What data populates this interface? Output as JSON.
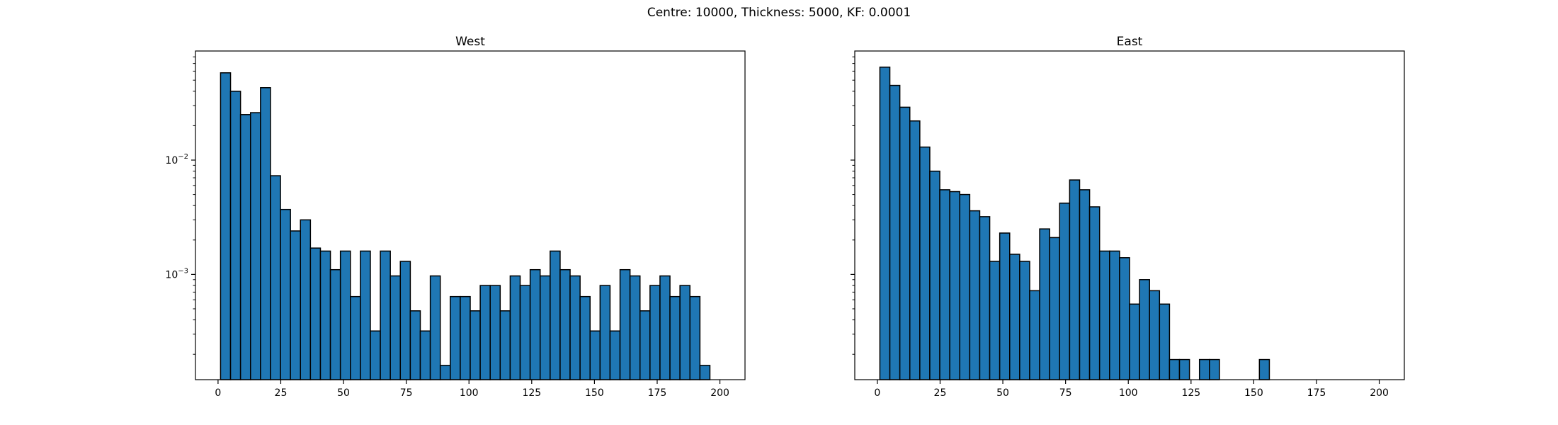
{
  "suptitle": "Centre: 10000, Thickness: 5000, KF: 0.0001",
  "chart_data": [
    {
      "type": "bar",
      "title": "West",
      "xlabel": "",
      "ylabel": "",
      "yscale": "log",
      "xlim": [
        -9,
        210
      ],
      "ylim": [
        0.00012,
        0.09
      ],
      "xticks": [
        0,
        25,
        50,
        75,
        100,
        125,
        150,
        175,
        200
      ],
      "yticks": [
        {
          "value": 0.01,
          "base": "10",
          "exp": "−2"
        },
        {
          "value": 0.001,
          "base": "10",
          "exp": "−3"
        }
      ],
      "bin_start": 1,
      "bin_width": 3.98,
      "values": [
        0.058,
        0.04,
        0.025,
        0.026,
        0.043,
        0.0073,
        0.0037,
        0.0024,
        0.003,
        0.0017,
        0.0016,
        0.0011,
        0.0016,
        0.00064,
        0.0016,
        0.00032,
        0.0016,
        0.00097,
        0.0013,
        0.00048,
        0.00032,
        0.00097,
        0.00016,
        0.00064,
        0.00064,
        0.00048,
        0.0008,
        0.0008,
        0.00048,
        0.00097,
        0.0008,
        0.0011,
        0.00097,
        0.0016,
        0.0011,
        0.00097,
        0.00064,
        0.00032,
        0.0008,
        0.00032,
        0.0011,
        0.00097,
        0.00048,
        0.0008,
        0.00097,
        0.00064,
        0.0008,
        0.00064,
        0.00016,
        0
      ]
    },
    {
      "type": "bar",
      "title": "East",
      "xlabel": "",
      "ylabel": "",
      "yscale": "log",
      "xlim": [
        -9,
        210
      ],
      "ylim": [
        0.00012,
        0.09
      ],
      "xticks": [
        0,
        25,
        50,
        75,
        100,
        125,
        150,
        175,
        200
      ],
      "yticks": [],
      "bin_start": 1,
      "bin_width": 3.98,
      "values": [
        0.065,
        0.045,
        0.029,
        0.022,
        0.013,
        0.008,
        0.0055,
        0.0053,
        0.005,
        0.0036,
        0.0032,
        0.0013,
        0.0023,
        0.0015,
        0.0013,
        0.00072,
        0.0025,
        0.0021,
        0.0042,
        0.0067,
        0.0055,
        0.0039,
        0.0016,
        0.0016,
        0.0014,
        0.00055,
        0.0009,
        0.00072,
        0.00055,
        0.00018,
        0.00018,
        0,
        0.00018,
        0.00018,
        0,
        0,
        0,
        0,
        0.00018,
        0,
        0,
        0,
        0,
        0,
        0,
        0,
        0,
        0,
        0,
        0
      ]
    }
  ]
}
